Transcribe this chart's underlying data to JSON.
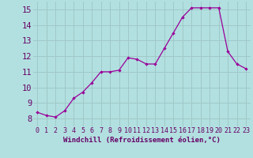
{
  "x": [
    0,
    1,
    2,
    3,
    4,
    5,
    6,
    7,
    8,
    9,
    10,
    11,
    12,
    13,
    14,
    15,
    16,
    17,
    18,
    19,
    20,
    21,
    22,
    23
  ],
  "y": [
    8.4,
    8.2,
    8.1,
    8.5,
    9.3,
    9.7,
    10.3,
    11.0,
    11.0,
    11.1,
    11.9,
    11.8,
    11.5,
    11.5,
    12.5,
    13.5,
    14.5,
    15.1,
    15.1,
    15.1,
    15.1,
    12.3,
    11.5,
    11.2
  ],
  "xlabel": "Windchill (Refroidissement éolien,°C)",
  "xlim": [
    -0.5,
    23.5
  ],
  "ylim": [
    7.5,
    15.5
  ],
  "yticks": [
    8,
    9,
    10,
    11,
    12,
    13,
    14,
    15
  ],
  "xticks": [
    0,
    1,
    2,
    3,
    4,
    5,
    6,
    7,
    8,
    9,
    10,
    11,
    12,
    13,
    14,
    15,
    16,
    17,
    18,
    19,
    20,
    21,
    22,
    23
  ],
  "line_color": "#990099",
  "marker": "D",
  "marker_size": 2.2,
  "bg_color": "#b2e0e0",
  "grid_color": "#a0c8c8",
  "xlabel_color": "#660066",
  "tick_color": "#660066",
  "xlabel_fontsize": 6.5,
  "ytick_fontsize": 7.5,
  "xtick_fontsize": 6.0
}
